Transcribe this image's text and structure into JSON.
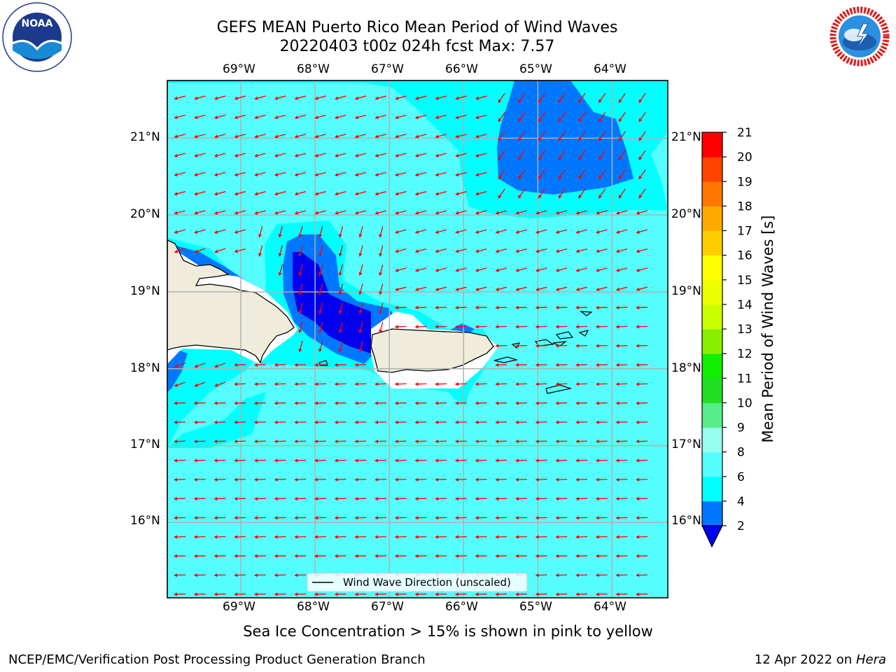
{
  "header": {
    "title_line1": "GEFS MEAN Puerto Rico Mean Period of Wind Waves",
    "title_line2": "20220403 t00z 024h fcst   Max: 7.57"
  },
  "logos": {
    "left": {
      "name": "noaa-logo",
      "text": "NOAA",
      "ring_text": "NATIONAL OCEANIC AND ATMOSPHERIC ADMINISTRATION · U.S. DEPARTMENT OF COMMERCE"
    },
    "right": {
      "name": "nws-logo",
      "ring_text": "NATIONAL WEATHER SERVICE"
    }
  },
  "map": {
    "lon_labels": [
      "69°W",
      "68°W",
      "67°W",
      "66°W",
      "65°W",
      "64°W"
    ],
    "lat_labels": [
      "21°N",
      "20°N",
      "19°N",
      "18°N",
      "17°N",
      "16°N"
    ],
    "lon_values": [
      -69,
      -68,
      -67,
      -66,
      -65,
      -64
    ],
    "lat_values": [
      21,
      20,
      19,
      18,
      17,
      16
    ],
    "extent": {
      "lon_min": -69.99,
      "lon_max": -63.25,
      "lat_min": 15.02,
      "lat_max": 21.75
    },
    "legend_label": "Wind Wave Direction (unscaled)",
    "colors": {
      "land": "#efecdc",
      "arrow": "#ff0000",
      "grid": "#b0b0b0"
    }
  },
  "colorbar": {
    "label": "Mean Period of Wind Waves [s]",
    "ticks": [
      "2",
      "4",
      "6",
      "8",
      "9",
      "10",
      "11",
      "12",
      "13",
      "14",
      "15",
      "16",
      "17",
      "18",
      "19",
      "20",
      "21"
    ],
    "colors": [
      "#0000ee",
      "#0077ff",
      "#00ffff",
      "#55ffff",
      "#99ffee",
      "#55ee88",
      "#22dd22",
      "#11ee00",
      "#88ee00",
      "#ccff00",
      "#eeff00",
      "#ffff00",
      "#ffcc00",
      "#ffaa00",
      "#ff7700",
      "#ff4400",
      "#ff0000"
    ],
    "under_color": "#0000ee"
  },
  "subtitle": "Sea Ice Concentration > 15% is shown in pink to yellow",
  "footer": {
    "left": "NCEP/EMC/Verification Post Processing Product Generation Branch",
    "right_prefix": "12 Apr 2022 on ",
    "right_host": "Hera"
  }
}
